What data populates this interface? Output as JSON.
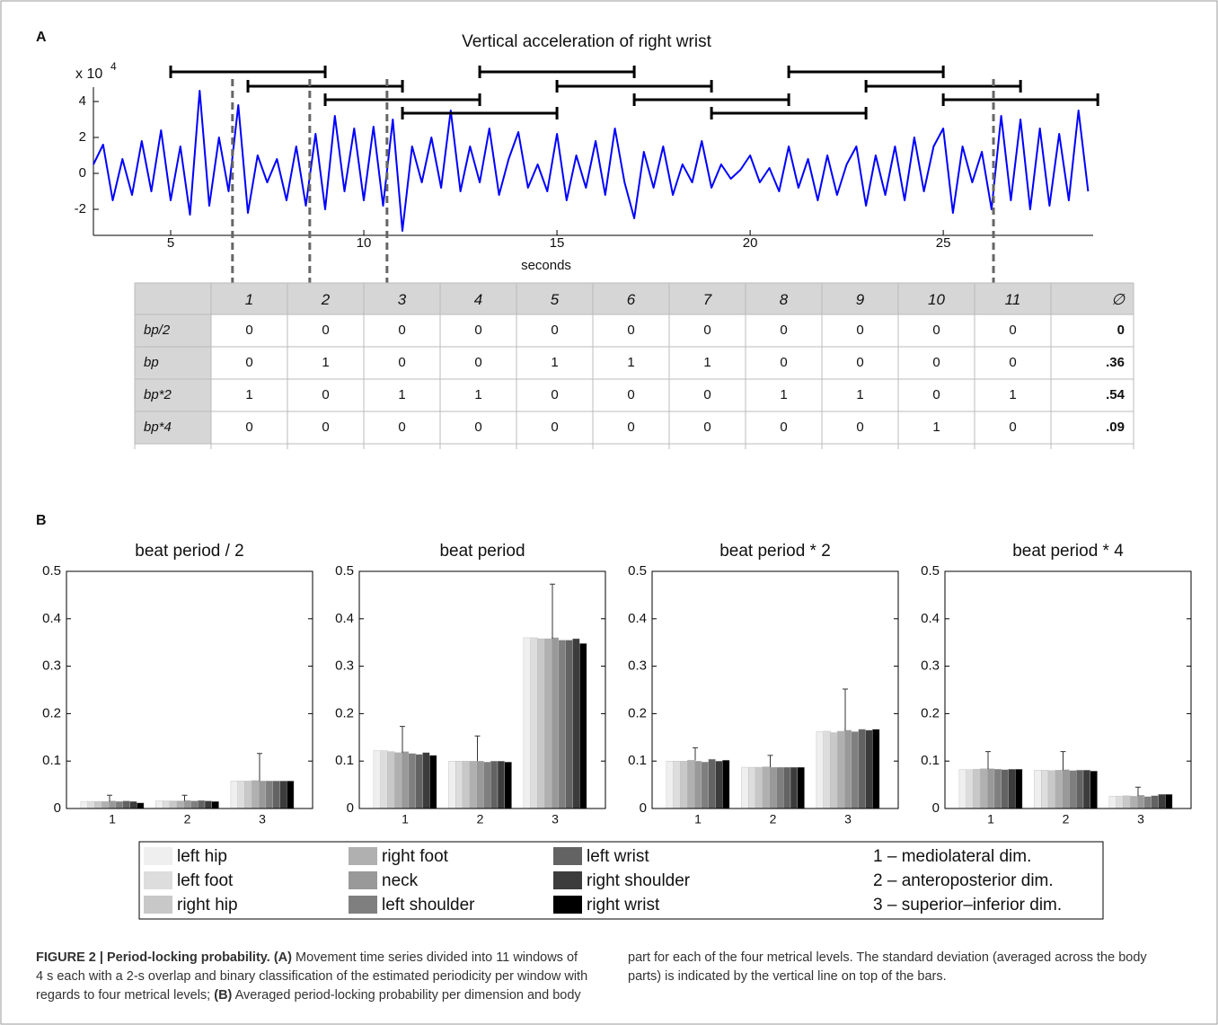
{
  "panel_labels": [
    "A",
    "B"
  ],
  "chart_data": [
    {
      "type": "line",
      "title": "Vertical acceleration of right wrist",
      "y_multiplier": {
        "base": "x 10",
        "exponent": "4"
      },
      "xlabel": "seconds",
      "x": [
        3,
        3.25,
        3.5,
        3.75,
        4,
        4.25,
        4.5,
        4.75,
        5,
        5.25,
        5.5,
        5.75,
        6,
        6.25,
        6.5,
        6.75,
        7,
        7.25,
        7.5,
        7.75,
        8,
        8.25,
        8.5,
        8.75,
        9,
        9.25,
        9.5,
        9.75,
        10,
        10.25,
        10.5,
        10.75,
        11,
        11.25,
        11.5,
        11.75,
        12,
        12.25,
        12.5,
        12.75,
        13,
        13.25,
        13.5,
        13.75,
        14,
        14.25,
        14.5,
        14.75,
        15,
        15.25,
        15.5,
        15.75,
        16,
        16.25,
        16.5,
        16.75,
        17,
        17.25,
        17.5,
        17.75,
        18,
        18.25,
        18.5,
        18.75,
        19,
        19.25,
        19.5,
        19.75,
        20,
        20.25,
        20.5,
        20.75,
        21,
        21.25,
        21.5,
        21.75,
        22,
        22.25,
        22.5,
        22.75,
        23,
        23.25,
        23.5,
        23.75,
        24,
        24.25,
        24.5,
        24.75,
        25,
        25.25,
        25.5,
        25.75,
        26,
        26.25,
        26.5,
        26.75,
        27,
        27.25,
        27.5,
        27.75,
        28,
        28.25,
        28.5,
        28.75
      ],
      "series": [
        {
          "color": "#0000ff",
          "values": [
            0.5,
            1.6,
            -1.5,
            0.8,
            -1.2,
            1.8,
            -1.0,
            2.4,
            -1.5,
            1.5,
            -2.3,
            4.6,
            -1.8,
            2.0,
            -1.0,
            3.8,
            -2.2,
            1.0,
            -0.5,
            0.8,
            -1.5,
            1.5,
            -1.8,
            2.2,
            -2.0,
            3.2,
            -1.0,
            2.5,
            -1.5,
            2.6,
            -1.8,
            3.0,
            -3.2,
            1.5,
            -0.5,
            2.0,
            -0.8,
            3.5,
            -1.0,
            1.5,
            -0.5,
            2.5,
            -1.2,
            0.8,
            2.3,
            -0.8,
            0.5,
            -1.0,
            2.2,
            -1.5,
            1.0,
            -0.8,
            1.8,
            -1.2,
            2.5,
            -0.5,
            -2.5,
            1.2,
            -0.8,
            1.5,
            -1.2,
            0.5,
            -0.5,
            1.8,
            -0.8,
            0.5,
            -0.3,
            0.2,
            1.0,
            -0.5,
            0.3,
            -1.0,
            1.5,
            -0.8,
            0.8,
            -1.5,
            1.0,
            -1.2,
            0.5,
            1.5,
            -1.8,
            1.0,
            -1.2,
            1.5,
            -1.5,
            2.0,
            -1.0,
            1.5,
            2.5,
            -2.2,
            1.5,
            -0.5,
            1.2,
            -2.0,
            3.2,
            -1.5,
            3.0,
            -2.0,
            2.5,
            -1.8,
            2.2,
            -1.5,
            3.5,
            -1.0
          ]
        }
      ],
      "xlim": [
        3,
        28.88
      ],
      "ylim": [
        -3.3,
        4.8
      ],
      "xticks": [
        5,
        10,
        15,
        20,
        25
      ],
      "yticks": [
        -2,
        0,
        2,
        4
      ],
      "windows": [
        [
          5,
          9
        ],
        [
          7,
          11
        ],
        [
          9,
          13
        ],
        [
          11,
          15
        ],
        [
          13,
          17
        ],
        [
          15,
          19
        ],
        [
          17,
          21
        ],
        [
          19,
          23
        ],
        [
          21,
          25
        ],
        [
          23,
          27
        ],
        [
          25,
          29
        ]
      ],
      "markers": [
        6.6,
        8.6,
        10.6,
        26.3
      ]
    },
    {
      "type": "bar",
      "title": "beat period / 2",
      "categories": [
        "1",
        "2",
        "3"
      ],
      "series": [
        {
          "values": [
            0.015,
            0.016,
            0.058
          ]
        },
        {
          "values": [
            0.015,
            0.016,
            0.058
          ]
        },
        {
          "values": [
            0.015,
            0.016,
            0.058
          ]
        },
        {
          "values": [
            0.015,
            0.016,
            0.059
          ]
        },
        {
          "values": [
            0.016,
            0.017,
            0.058
          ]
        },
        {
          "values": [
            0.015,
            0.016,
            0.058
          ]
        },
        {
          "values": [
            0.016,
            0.017,
            0.058
          ]
        },
        {
          "values": [
            0.015,
            0.016,
            0.058
          ]
        },
        {
          "values": [
            0.012,
            0.015,
            0.058
          ]
        }
      ],
      "error_bars": [
        {
          "mean": 0.015,
          "sd": 0.013
        },
        {
          "mean": 0.016,
          "sd": 0.012
        },
        {
          "mean": 0.058,
          "sd": 0.058
        }
      ],
      "ylim": [
        0,
        0.5
      ],
      "yticks": [
        0,
        0.1,
        0.2,
        0.3,
        0.4,
        0.5
      ]
    },
    {
      "type": "bar",
      "title": "beat period",
      "categories": [
        "1",
        "2",
        "3"
      ],
      "series": [
        {
          "values": [
            0.122,
            0.1,
            0.36
          ]
        },
        {
          "values": [
            0.122,
            0.1,
            0.36
          ]
        },
        {
          "values": [
            0.12,
            0.1,
            0.358
          ]
        },
        {
          "values": [
            0.118,
            0.1,
            0.358
          ]
        },
        {
          "values": [
            0.12,
            0.1,
            0.36
          ]
        },
        {
          "values": [
            0.116,
            0.098,
            0.355
          ]
        },
        {
          "values": [
            0.114,
            0.1,
            0.355
          ]
        },
        {
          "values": [
            0.118,
            0.1,
            0.358
          ]
        },
        {
          "values": [
            0.112,
            0.098,
            0.348
          ]
        }
      ],
      "error_bars": [
        {
          "mean": 0.118,
          "sd": 0.055
        },
        {
          "mean": 0.1,
          "sd": 0.053
        },
        {
          "mean": 0.358,
          "sd": 0.115
        }
      ],
      "ylim": [
        0,
        0.5
      ],
      "yticks": [
        0,
        0.1,
        0.2,
        0.3,
        0.4,
        0.5
      ]
    },
    {
      "type": "bar",
      "title": "beat period * 2",
      "categories": [
        "1",
        "2",
        "3"
      ],
      "series": [
        {
          "values": [
            0.1,
            0.087,
            0.162
          ]
        },
        {
          "values": [
            0.1,
            0.087,
            0.163
          ]
        },
        {
          "values": [
            0.1,
            0.087,
            0.16
          ]
        },
        {
          "values": [
            0.102,
            0.088,
            0.163
          ]
        },
        {
          "values": [
            0.1,
            0.087,
            0.165
          ]
        },
        {
          "values": [
            0.098,
            0.087,
            0.162
          ]
        },
        {
          "values": [
            0.104,
            0.087,
            0.167
          ]
        },
        {
          "values": [
            0.1,
            0.087,
            0.165
          ]
        },
        {
          "values": [
            0.102,
            0.087,
            0.167
          ]
        }
      ],
      "error_bars": [
        {
          "mean": 0.101,
          "sd": 0.027
        },
        {
          "mean": 0.087,
          "sd": 0.025
        },
        {
          "mean": 0.164,
          "sd": 0.088
        }
      ],
      "ylim": [
        0,
        0.5
      ],
      "yticks": [
        0,
        0.1,
        0.2,
        0.3,
        0.4,
        0.5
      ]
    },
    {
      "type": "bar",
      "title": "beat period * 4",
      "categories": [
        "1",
        "2",
        "3"
      ],
      "series": [
        {
          "values": [
            0.082,
            0.081,
            0.026
          ]
        },
        {
          "values": [
            0.082,
            0.081,
            0.026
          ]
        },
        {
          "values": [
            0.083,
            0.08,
            0.027
          ]
        },
        {
          "values": [
            0.084,
            0.081,
            0.026
          ]
        },
        {
          "values": [
            0.084,
            0.082,
            0.028
          ]
        },
        {
          "values": [
            0.083,
            0.08,
            0.025
          ]
        },
        {
          "values": [
            0.082,
            0.081,
            0.027
          ]
        },
        {
          "values": [
            0.083,
            0.081,
            0.03
          ]
        },
        {
          "values": [
            0.083,
            0.079,
            0.03
          ]
        }
      ],
      "error_bars": [
        {
          "mean": 0.083,
          "sd": 0.037
        },
        {
          "mean": 0.081,
          "sd": 0.039
        },
        {
          "mean": 0.027,
          "sd": 0.018
        }
      ],
      "ylim": [
        0,
        0.5
      ],
      "yticks": [
        0,
        0.1,
        0.2,
        0.3,
        0.4,
        0.5
      ]
    }
  ],
  "table": {
    "header": [
      "1",
      "2",
      "3",
      "4",
      "5",
      "6",
      "7",
      "8",
      "9",
      "10",
      "11",
      "∅"
    ],
    "rows": [
      {
        "label": "bp/2",
        "cells": [
          "0",
          "0",
          "0",
          "0",
          "0",
          "0",
          "0",
          "0",
          "0",
          "0",
          "0"
        ],
        "mean": "0"
      },
      {
        "label": "bp",
        "cells": [
          "0",
          "1",
          "0",
          "0",
          "1",
          "1",
          "1",
          "0",
          "0",
          "0",
          "0"
        ],
        "mean": ".36"
      },
      {
        "label": "bp*2",
        "cells": [
          "1",
          "0",
          "1",
          "1",
          "0",
          "0",
          "0",
          "1",
          "1",
          "0",
          "1"
        ],
        "mean": ".54"
      },
      {
        "label": "bp*4",
        "cells": [
          "0",
          "0",
          "0",
          "0",
          "0",
          "0",
          "0",
          "0",
          "0",
          "1",
          "0"
        ],
        "mean": ".09"
      }
    ]
  },
  "legend": {
    "series": [
      {
        "name": "left hip",
        "color": "#efefef"
      },
      {
        "name": "left foot",
        "color": "#dddddd"
      },
      {
        "name": "right hip",
        "color": "#c8c8c8"
      },
      {
        "name": "right foot",
        "color": "#b0b0b0"
      },
      {
        "name": "neck",
        "color": "#999999"
      },
      {
        "name": "left shoulder",
        "color": "#7f7f7f"
      },
      {
        "name": "left wrist",
        "color": "#636363"
      },
      {
        "name": "right shoulder",
        "color": "#3c3c3c"
      },
      {
        "name": "right wrist",
        "color": "#000000"
      }
    ],
    "dimensions": [
      "1 – mediolateral dim.",
      "2 – anteroposterior dim.",
      "3 – superior–inferior dim."
    ]
  },
  "caption": {
    "title": "FIGURE 2 | Period-locking probability.",
    "a_label": "(A)",
    "a_text": "Movement time series divided into 11 windows of 4 s each with a 2-s overlap and binary classification of the estimated periodicity per window with regards to four metrical levels;",
    "b_label": "(B)",
    "b_text": "Averaged period-locking probability per dimension and body part for each of the four metrical levels. The standard deviation (averaged across the body parts) is indicated by the vertical line on top of the bars."
  }
}
